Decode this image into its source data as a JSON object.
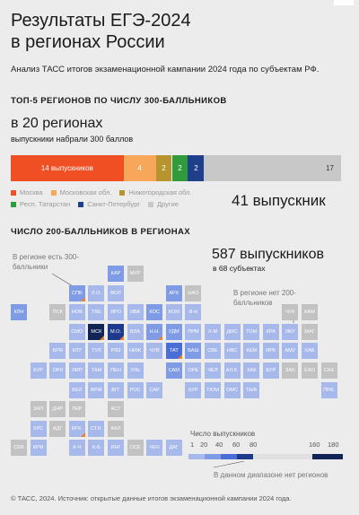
{
  "title_line1": "Результаты ЕГЭ-2024",
  "title_line2": "в регионах России",
  "subtitle": "Анализ ТАСС итогов экзаменационной кампании 2024 года по субъектам РФ.",
  "section1": {
    "heading": "ТОП-5 РЕГИОНОВ ПО ЧИСЛУ 300-БАЛЛЬНИКОВ",
    "big": "в 20 регионах",
    "big_sub": "выпускники набрали 300 баллов",
    "total": "41 выпускник"
  },
  "section2": {
    "heading": "ЧИСЛО 200-БАЛЛЬНИКОВ В РЕГИОНАХ",
    "big": "587 выпускников",
    "big_sub": "в 68 субъектах",
    "note_yes": "В регионе есть 300-балльники",
    "note_no": "В регионе нет 200-балльников"
  },
  "scale": {
    "title": "Число выпускников",
    "ticks": [
      "1",
      "20",
      "40",
      "60",
      "80",
      "160",
      "180"
    ],
    "no_region_note": "В данном диапазоне нет регионов"
  },
  "footer": "© ТАСС, 2024. Источник: открытые данные итогов экзаменационной кампании 2024 года.",
  "colors": {
    "moscow": "#f04e23",
    "moscow_obl": "#f7a65a",
    "nizhny": "#b8942e",
    "tatarstan": "#2f9b3b",
    "spb": "#1f3e8c",
    "others": "#c8c8c8",
    "scale": [
      "#a7b9ea",
      "#7f9be6",
      "#4a6ed8",
      "#1d3a8c",
      "#102456"
    ],
    "no_data": "#c2c2c2",
    "has300": "#f0802a"
  },
  "chart_data": [
    {
      "type": "bar",
      "title": "ТОП-5 РЕГИОНОВ ПО ЧИСЛУ 300-БАЛЛЬНИКОВ",
      "stacked": true,
      "series": [
        {
          "name": "Москва",
          "value": 14,
          "label": "14 выпускников",
          "color": "#f04e23"
        },
        {
          "name": "Московская обл.",
          "value": 4,
          "label": "4",
          "color": "#f7a65a"
        },
        {
          "name": "Нижегородская обл.",
          "value": 2,
          "label": "2",
          "color": "#b8942e"
        },
        {
          "name": "Респ. Татарстан",
          "value": 2,
          "label": "2",
          "color": "#2f9b3b"
        },
        {
          "name": "Санкт-Петербург",
          "value": 2,
          "label": "2",
          "color": "#1f3e8c"
        },
        {
          "name": "Другие",
          "value": 17,
          "label": "17",
          "color": "#c8c8c8"
        }
      ],
      "total": 41
    },
    {
      "type": "heatmap",
      "title": "ЧИСЛО 200-БАЛЛЬНИКОВ В РЕГИОНАХ",
      "legend_title": "Число выпускников",
      "levels": [
        "нет",
        "1–20",
        "20–40",
        "40–60",
        "60–80",
        "160–180"
      ],
      "tiles": [
        {
          "code": "КАР",
          "col": 5,
          "row": 0,
          "level": 2
        },
        {
          "code": "МУР",
          "col": 6,
          "row": 0,
          "level": 0
        },
        {
          "code": "СПБ",
          "col": 3,
          "row": 1,
          "level": 2,
          "has300": true
        },
        {
          "code": "Л.О.",
          "col": 4,
          "row": 1,
          "level": 1
        },
        {
          "code": "ВОЛ",
          "col": 5,
          "row": 1,
          "level": 1
        },
        {
          "code": "АРХ",
          "col": 8,
          "row": 1,
          "level": 2
        },
        {
          "code": "НАО",
          "col": 9,
          "row": 1,
          "level": 0
        },
        {
          "code": "КЛН",
          "col": 0,
          "row": 2,
          "level": 2
        },
        {
          "code": "ПСК",
          "col": 2,
          "row": 2,
          "level": 0
        },
        {
          "code": "НОВ",
          "col": 3,
          "row": 2,
          "level": 1
        },
        {
          "code": "ТВЕ",
          "col": 4,
          "row": 2,
          "level": 1
        },
        {
          "code": "ЯРО",
          "col": 5,
          "row": 2,
          "level": 1
        },
        {
          "code": "ИВА",
          "col": 6,
          "row": 2,
          "level": 1
        },
        {
          "code": "КОС",
          "col": 7,
          "row": 2,
          "level": 2
        },
        {
          "code": "КОМ",
          "col": 8,
          "row": 2,
          "level": 1
        },
        {
          "code": "Я-Н",
          "col": 9,
          "row": 2,
          "level": 1
        },
        {
          "code": "ЧУК",
          "col": 14,
          "row": 2,
          "level": 0
        },
        {
          "code": "КАМ",
          "col": 15,
          "row": 2,
          "level": 0
        },
        {
          "code": "СМО",
          "col": 3,
          "row": 3,
          "level": 1
        },
        {
          "code": "МСК",
          "col": 4,
          "row": 3,
          "level": 5,
          "has300": true
        },
        {
          "code": "М.О.",
          "col": 5,
          "row": 3,
          "level": 4,
          "has300": true
        },
        {
          "code": "ВЛА",
          "col": 6,
          "row": 3,
          "level": 1
        },
        {
          "code": "Н.Н.",
          "col": 7,
          "row": 3,
          "level": 2,
          "has300": true
        },
        {
          "code": "УДМ",
          "col": 8,
          "row": 3,
          "level": 2
        },
        {
          "code": "ПРМ",
          "col": 9,
          "row": 3,
          "level": 1
        },
        {
          "code": "Х-М",
          "col": 10,
          "row": 3,
          "level": 1
        },
        {
          "code": "ДМС",
          "col": 11,
          "row": 3,
          "level": 1
        },
        {
          "code": "ТОМ",
          "col": 12,
          "row": 3,
          "level": 1
        },
        {
          "code": "КРА",
          "col": 13,
          "row": 3,
          "level": 1
        },
        {
          "code": "ЯКУ",
          "col": 14,
          "row": 3,
          "level": 1
        },
        {
          "code": "МАГ",
          "col": 15,
          "row": 3,
          "level": 0
        },
        {
          "code": "БРЯ",
          "col": 2,
          "row": 4,
          "level": 1
        },
        {
          "code": "КЛУ",
          "col": 3,
          "row": 4,
          "level": 1
        },
        {
          "code": "ТУЛ",
          "col": 4,
          "row": 4,
          "level": 1
        },
        {
          "code": "РЯЗ",
          "col": 5,
          "row": 4,
          "level": 1
        },
        {
          "code": "НИЖ",
          "col": 6,
          "row": 4,
          "level": 1
        },
        {
          "code": "ЧУВ",
          "col": 7,
          "row": 4,
          "level": 1
        },
        {
          "code": "ТАТ",
          "col": 8,
          "row": 4,
          "level": 3,
          "has300": true
        },
        {
          "code": "БАШ",
          "col": 9,
          "row": 4,
          "level": 2
        },
        {
          "code": "СВЕ",
          "col": 10,
          "row": 4,
          "level": 1
        },
        {
          "code": "НВС",
          "col": 11,
          "row": 4,
          "level": 1
        },
        {
          "code": "КЕМ",
          "col": 12,
          "row": 4,
          "level": 1
        },
        {
          "code": "ИРК",
          "col": 13,
          "row": 4,
          "level": 1
        },
        {
          "code": "АМУ",
          "col": 14,
          "row": 4,
          "level": 1
        },
        {
          "code": "ХАБ",
          "col": 15,
          "row": 4,
          "level": 1
        },
        {
          "code": "КУР",
          "col": 1,
          "row": 5,
          "level": 1
        },
        {
          "code": "ОРЛ",
          "col": 2,
          "row": 5,
          "level": 1
        },
        {
          "code": "ЛИП",
          "col": 3,
          "row": 5,
          "level": 1
        },
        {
          "code": "ТАМ",
          "col": 4,
          "row": 5,
          "level": 1
        },
        {
          "code": "ПЕН",
          "col": 5,
          "row": 5,
          "level": 1
        },
        {
          "code": "УЛЬ",
          "col": 6,
          "row": 5,
          "level": 1
        },
        {
          "code": "САМ",
          "col": 8,
          "row": 5,
          "level": 2
        },
        {
          "code": "ОРЕ",
          "col": 9,
          "row": 5,
          "level": 1
        },
        {
          "code": "ЧЕЛ",
          "col": 10,
          "row": 5,
          "level": 1
        },
        {
          "code": "АЛ.К.",
          "col": 11,
          "row": 5,
          "level": 1
        },
        {
          "code": "ХАК",
          "col": 12,
          "row": 5,
          "level": 1
        },
        {
          "code": "БУР",
          "col": 13,
          "row": 5,
          "level": 1
        },
        {
          "code": "ЗАБ",
          "col": 14,
          "row": 5,
          "level": 0
        },
        {
          "code": "ЕАО",
          "col": 15,
          "row": 5,
          "level": 0
        },
        {
          "code": "САХ",
          "col": 16,
          "row": 5,
          "level": 0
        },
        {
          "code": "БЕЛ",
          "col": 3,
          "row": 6,
          "level": 1
        },
        {
          "code": "ВРЖ",
          "col": 4,
          "row": 6,
          "level": 1
        },
        {
          "code": "ВГГ",
          "col": 5,
          "row": 6,
          "level": 1
        },
        {
          "code": "РОС",
          "col": 6,
          "row": 6,
          "level": 1
        },
        {
          "code": "САР",
          "col": 7,
          "row": 6,
          "level": 1
        },
        {
          "code": "КУР",
          "col": 9,
          "row": 6,
          "level": 1
        },
        {
          "code": "ТЮМ",
          "col": 10,
          "row": 6,
          "level": 1
        },
        {
          "code": "ОМС",
          "col": 11,
          "row": 6,
          "level": 1
        },
        {
          "code": "ТЫВ",
          "col": 12,
          "row": 6,
          "level": 1
        },
        {
          "code": "ПР.К.",
          "col": 16,
          "row": 6,
          "level": 1
        },
        {
          "code": "ЗАП",
          "col": 1,
          "row": 7,
          "level": 0
        },
        {
          "code": "ДНР",
          "col": 2,
          "row": 7,
          "level": 0
        },
        {
          "code": "ЛНР",
          "col": 3,
          "row": 7,
          "level": 0
        },
        {
          "code": "АСТ",
          "col": 5,
          "row": 7,
          "level": 0
        },
        {
          "code": "ХРС",
          "col": 1,
          "row": 8,
          "level": 1
        },
        {
          "code": "АДГ",
          "col": 2,
          "row": 8,
          "level": 0
        },
        {
          "code": "КР.К.",
          "col": 3,
          "row": 8,
          "level": 1,
          "has300": true
        },
        {
          "code": "СТ.К.",
          "col": 4,
          "row": 8,
          "level": 1
        },
        {
          "code": "КАЛ",
          "col": 5,
          "row": 8,
          "level": 0
        },
        {
          "code": "СЕВ",
          "col": 0,
          "row": 9,
          "level": 0
        },
        {
          "code": "КРМ",
          "col": 1,
          "row": 9,
          "level": 1
        },
        {
          "code": "К-Ч",
          "col": 3,
          "row": 9,
          "level": 1
        },
        {
          "code": "К-Б",
          "col": 4,
          "row": 9,
          "level": 1
        },
        {
          "code": "ИНГ",
          "col": 5,
          "row": 9,
          "level": 1
        },
        {
          "code": "ОСЕ",
          "col": 6,
          "row": 9,
          "level": 0
        },
        {
          "code": "ЧЕЧ",
          "col": 7,
          "row": 9,
          "level": 1
        },
        {
          "code": "ДАГ",
          "col": 8,
          "row": 9,
          "level": 1
        }
      ]
    }
  ]
}
